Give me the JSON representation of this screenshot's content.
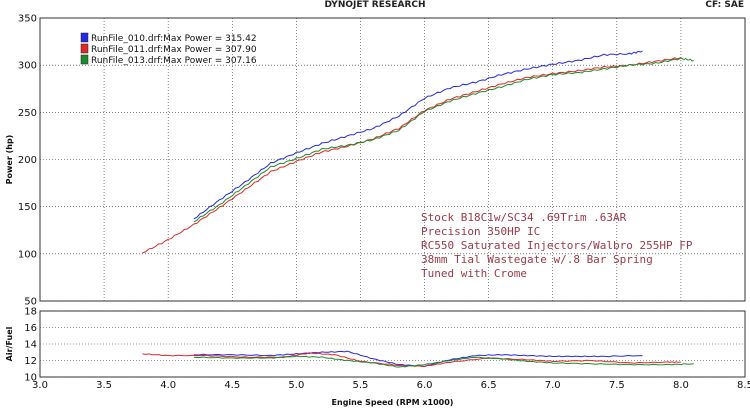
{
  "header": {
    "title": "DYNOJET RESEARCH",
    "correction": "CF: SAE"
  },
  "chart_data": [
    {
      "type": "line",
      "ylabel": "Power (hp)",
      "xlabel": "Engine Speed (RPM x1000)",
      "xlim": [
        3.0,
        8.5
      ],
      "ylim": [
        50,
        350
      ],
      "xticks": [
        "3.0",
        "3.5",
        "4.0",
        "4.5",
        "5.0",
        "5.5",
        "6.0",
        "6.5",
        "7.0",
        "7.5",
        "8.0",
        "8.5"
      ],
      "yticks": [
        "50",
        "100",
        "150",
        "200",
        "250",
        "300",
        "350"
      ],
      "grid": true,
      "legend_position": "top-left",
      "series": [
        {
          "name": "RunFile_010.drf:Max Power = 315.42",
          "color": "#2828e0",
          "x": [
            4.2,
            4.4,
            4.6,
            4.8,
            5.0,
            5.2,
            5.4,
            5.6,
            5.8,
            6.0,
            6.2,
            6.4,
            6.6,
            6.8,
            7.0,
            7.2,
            7.4,
            7.6,
            7.7
          ],
          "y": [
            137,
            157,
            176,
            196,
            207,
            217,
            225,
            233,
            246,
            265,
            276,
            282,
            290,
            296,
            301,
            305,
            311,
            312,
            315
          ]
        },
        {
          "name": "RunFile_011.drf:Max Power = 307.90",
          "color": "#e02828",
          "x": [
            3.8,
            4.0,
            4.2,
            4.4,
            4.6,
            4.8,
            5.0,
            5.2,
            5.4,
            5.6,
            5.8,
            6.0,
            6.2,
            6.4,
            6.6,
            6.8,
            7.0,
            7.2,
            7.4,
            7.6,
            7.8,
            8.0
          ],
          "y": [
            101,
            115,
            131,
            149,
            168,
            187,
            198,
            208,
            214,
            222,
            233,
            252,
            264,
            272,
            280,
            287,
            291,
            294,
            298,
            300,
            304,
            308
          ]
        },
        {
          "name": "RunFile_013.drf:Max Power = 307.16",
          "color": "#1e8a2e",
          "x": [
            4.2,
            4.4,
            4.6,
            4.8,
            5.0,
            5.2,
            5.4,
            5.6,
            5.8,
            6.0,
            6.2,
            6.4,
            6.6,
            6.8,
            7.0,
            7.2,
            7.4,
            7.6,
            7.8,
            8.0,
            8.1
          ],
          "y": [
            134,
            152,
            172,
            192,
            201,
            211,
            215,
            221,
            231,
            251,
            262,
            270,
            277,
            285,
            290,
            292,
            296,
            300,
            302,
            307,
            305
          ]
        }
      ],
      "annotations": [
        "Stock B18C1w/SC34 .69Trim .63AR",
        "Precision 350HP IC",
        "RC550 Saturated Injectors/Walbro 255HP FP",
        "38mm Tial Wastegate w/.8 Bar Spring",
        "Tuned with Crome"
      ]
    },
    {
      "type": "line",
      "ylabel": "Air/Fuel",
      "xlabel": "Engine Speed (RPM x1000)",
      "xlim": [
        3.0,
        8.5
      ],
      "ylim": [
        10,
        18
      ],
      "yticks": [
        "10",
        "12",
        "14",
        "16",
        "18"
      ],
      "grid": true,
      "series": [
        {
          "color": "#2828e0",
          "x": [
            4.2,
            4.5,
            4.8,
            5.0,
            5.2,
            5.4,
            5.6,
            5.8,
            6.0,
            6.2,
            6.4,
            6.6,
            6.8,
            7.0,
            7.2,
            7.4,
            7.7
          ],
          "y": [
            12.7,
            12.7,
            12.6,
            12.8,
            13.0,
            13.1,
            12.2,
            11.5,
            11.3,
            12.1,
            12.6,
            12.7,
            12.6,
            12.5,
            12.5,
            12.5,
            12.6
          ]
        },
        {
          "color": "#e02828",
          "x": [
            3.8,
            4.0,
            4.3,
            4.6,
            4.9,
            5.1,
            5.3,
            5.5,
            5.8,
            6.0,
            6.2,
            6.5,
            6.8,
            7.0,
            7.3,
            7.6,
            7.9,
            8.0
          ],
          "y": [
            12.8,
            12.6,
            12.6,
            12.4,
            12.4,
            12.9,
            12.7,
            11.9,
            11.4,
            11.3,
            11.8,
            12.3,
            12.1,
            11.9,
            12.0,
            11.7,
            11.8,
            11.8
          ]
        },
        {
          "color": "#1e8a2e",
          "x": [
            4.2,
            4.5,
            4.8,
            5.0,
            5.2,
            5.4,
            5.6,
            5.8,
            6.0,
            6.2,
            6.4,
            6.6,
            6.8,
            7.0,
            7.3,
            7.6,
            7.9,
            8.1
          ],
          "y": [
            12.4,
            12.3,
            12.3,
            12.5,
            12.4,
            12.0,
            11.7,
            11.2,
            11.5,
            12.0,
            12.4,
            12.2,
            11.9,
            11.7,
            11.6,
            11.5,
            11.5,
            11.6
          ]
        }
      ]
    }
  ]
}
